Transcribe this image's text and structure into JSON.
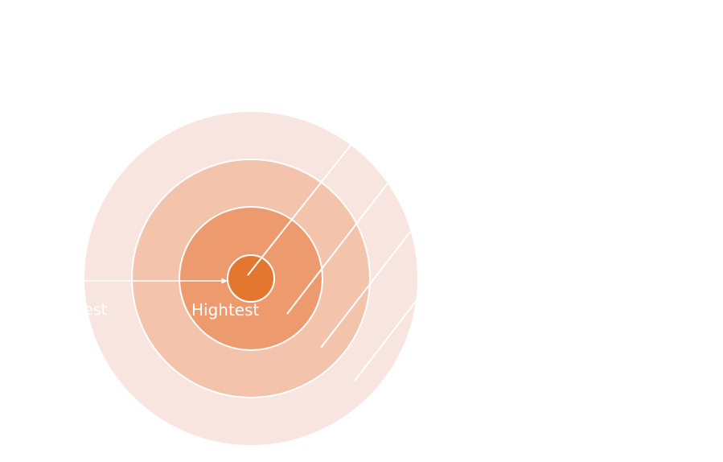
{
  "diagram": {
    "center_label": "Hightest",
    "clipped_left_label": "est",
    "colors": {
      "background": "#ffffff",
      "ring_outer": "#f8e5df",
      "ring_second": "#f3c3ac",
      "ring_third": "#ec9a6e",
      "core": "#e4772f",
      "line": "#ffffff",
      "label": "#ffffff"
    }
  }
}
